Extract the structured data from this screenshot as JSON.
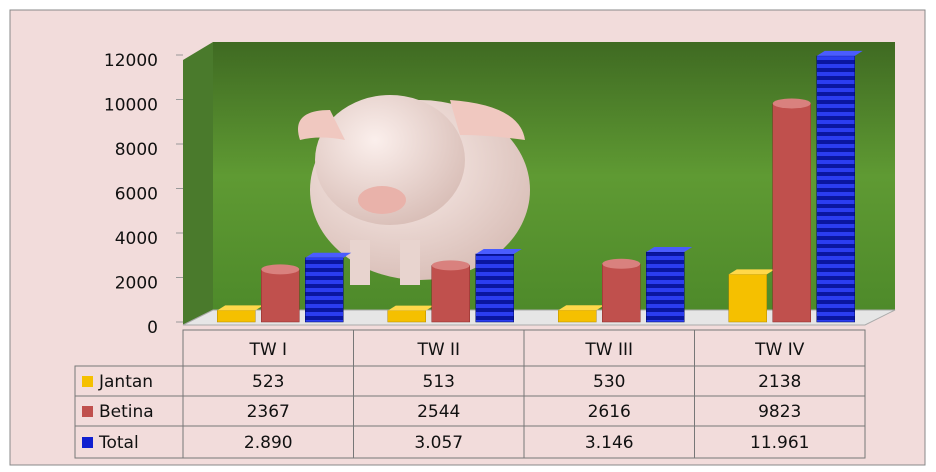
{
  "chart_data": {
    "type": "bar",
    "categories": [
      "TW I",
      "TW II",
      "TW III",
      "TW IV"
    ],
    "series": [
      {
        "name": "Jantan",
        "color": "#f5c000",
        "values": [
          523,
          513,
          530,
          2138
        ]
      },
      {
        "name": "Betina",
        "color": "#c0504d",
        "values": [
          2367,
          2544,
          2616,
          9823
        ]
      },
      {
        "name": "Total",
        "color": "#1020d0",
        "values": [
          2890,
          3057,
          3146,
          11961
        ],
        "value_labels": [
          "2.890",
          "3.057",
          "3.146",
          "11.961"
        ]
      }
    ],
    "ylim": [
      0,
      12000
    ],
    "yticks": [
      0,
      2000,
      4000,
      6000,
      8000,
      10000,
      12000
    ]
  }
}
